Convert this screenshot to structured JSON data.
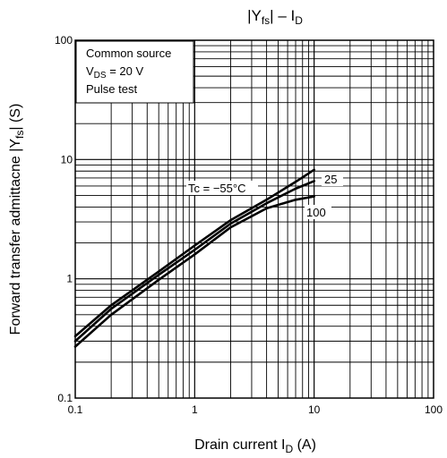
{
  "chart_data": {
    "type": "line",
    "title": "|Yfs| – ID",
    "title_parts": {
      "bars_left": "|",
      "y": "Y",
      "sub": "fs",
      "bars_right": "|",
      "dash": "–",
      "i": "I",
      "sub2": "D"
    },
    "xlabel": "Drain current   ID   (A)",
    "xlabel_parts": {
      "text": "Drain current",
      "i": "I",
      "sub": "D",
      "unit": "(A)"
    },
    "ylabel": "Forward transfer admittacne   |Yfs|   (S)",
    "ylabel_parts": {
      "text": "Forward transfer admittacne",
      "y": "|Y",
      "sub": "fs",
      "bar": "|",
      "unit": "(S)"
    },
    "x_scale": "log",
    "y_scale": "log",
    "xlim": [
      0.1,
      100
    ],
    "ylim": [
      0.1,
      100
    ],
    "x_ticks": [
      "0.1",
      "1",
      "10",
      "100"
    ],
    "y_ticks": [
      "0.1",
      "1",
      "10",
      "100"
    ],
    "grid": true,
    "annotation": {
      "line1": "Common source",
      "line2_v": "V",
      "line2_sub": "DS",
      "line2_rest": " = 20 V",
      "line3": "Pulse test"
    },
    "series": [
      {
        "name": "Tc = −55°C",
        "x": [
          0.1,
          0.2,
          0.5,
          1,
          2,
          4,
          7,
          10
        ],
        "values": [
          0.33,
          0.6,
          1.15,
          1.9,
          3.1,
          4.6,
          6.5,
          8.2
        ]
      },
      {
        "name": "25",
        "x": [
          0.1,
          0.2,
          0.5,
          1,
          2,
          4,
          7,
          10
        ],
        "values": [
          0.3,
          0.56,
          1.08,
          1.75,
          2.9,
          4.3,
          5.7,
          6.6
        ]
      },
      {
        "name": "100",
        "x": [
          0.1,
          0.2,
          0.5,
          1,
          2,
          4,
          7,
          10
        ],
        "values": [
          0.27,
          0.5,
          0.98,
          1.6,
          2.7,
          3.9,
          4.6,
          4.9
        ]
      }
    ]
  }
}
